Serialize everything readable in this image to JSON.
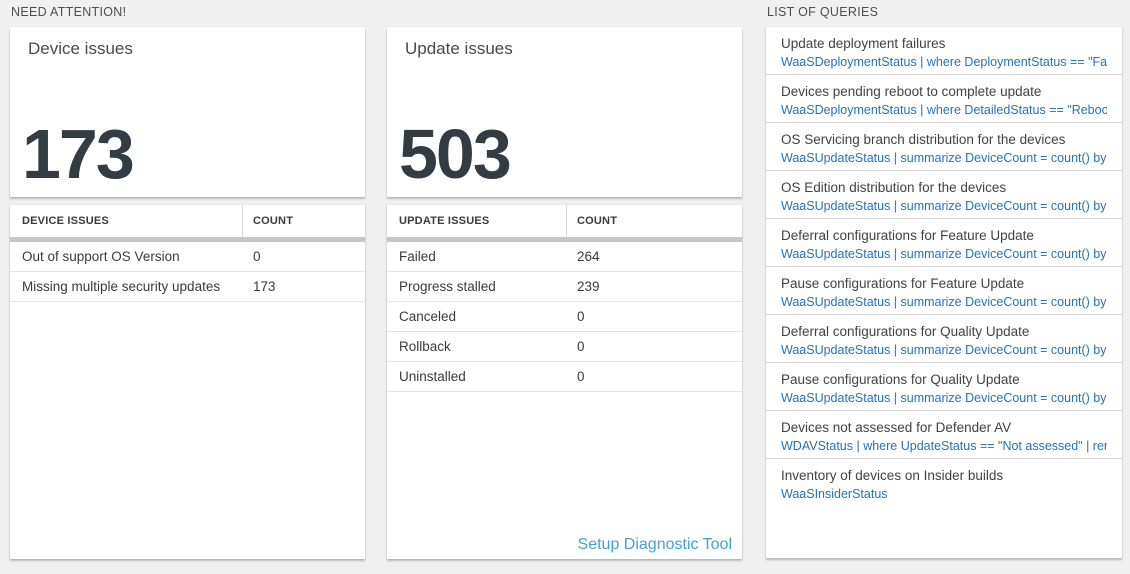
{
  "sections": {
    "need_attention": "NEED ATTENTION!",
    "queries": "LIST OF QUERIES"
  },
  "device_card": {
    "title": "Device issues",
    "big_number": "173",
    "table": {
      "headers": [
        "DEVICE ISSUES",
        "COUNT"
      ],
      "rows": [
        {
          "label": "Out of support OS Version",
          "count": "0"
        },
        {
          "label": "Missing multiple security updates",
          "count": "173"
        }
      ]
    }
  },
  "update_card": {
    "title": "Update issues",
    "big_number": "503",
    "table": {
      "headers": [
        "UPDATE ISSUES",
        "COUNT"
      ],
      "rows": [
        {
          "label": "Failed",
          "count": "264"
        },
        {
          "label": "Progress stalled",
          "count": "239"
        },
        {
          "label": "Canceled",
          "count": "0"
        },
        {
          "label": "Rollback",
          "count": "0"
        },
        {
          "label": "Uninstalled",
          "count": "0"
        }
      ]
    },
    "link": "Setup Diagnostic Tool"
  },
  "queries_list": {
    "items": [
      {
        "title": "Update deployment failures",
        "query": "WaaSDeploymentStatus | where DeploymentStatus == \"Failed\" |..."
      },
      {
        "title": "Devices pending reboot to complete update",
        "query": "WaaSDeploymentStatus | where DetailedStatus == \"Reboot pend..."
      },
      {
        "title": "OS Servicing branch distribution for the devices",
        "query": "WaaSUpdateStatus | summarize DeviceCount = count() by OSSer..."
      },
      {
        "title": "OS Edition distribution for the devices",
        "query": "WaaSUpdateStatus | summarize DeviceCount = count() by OSEdit..."
      },
      {
        "title": "Deferral configurations for Feature Update",
        "query": "WaaSUpdateStatus | summarize DeviceCount = count() by Featur..."
      },
      {
        "title": "Pause configurations for Feature Update",
        "query": "WaaSUpdateStatus | summarize DeviceCount = count() by Featur..."
      },
      {
        "title": "Deferral configurations for Quality Update",
        "query": "WaaSUpdateStatus | summarize DeviceCount = count() by Qualit..."
      },
      {
        "title": "Pause configurations for Quality Update",
        "query": "WaaSUpdateStatus | summarize DeviceCount = count() by Qualit..."
      },
      {
        "title": "Devices not assessed for Defender AV",
        "query": "WDAVStatus | where UpdateStatus == \"Not assessed\" | render ta..."
      },
      {
        "title": "Inventory of devices on Insider builds",
        "query": "WaaSInsiderStatus"
      }
    ]
  },
  "colors": {
    "page_background": "#f0f0f0",
    "tile_background": "#ffffff",
    "big_number": "#333b43",
    "query_blue": "#2273b9",
    "link_blue": "#459fd9",
    "header_bar_gray": "#c6c6c6"
  }
}
